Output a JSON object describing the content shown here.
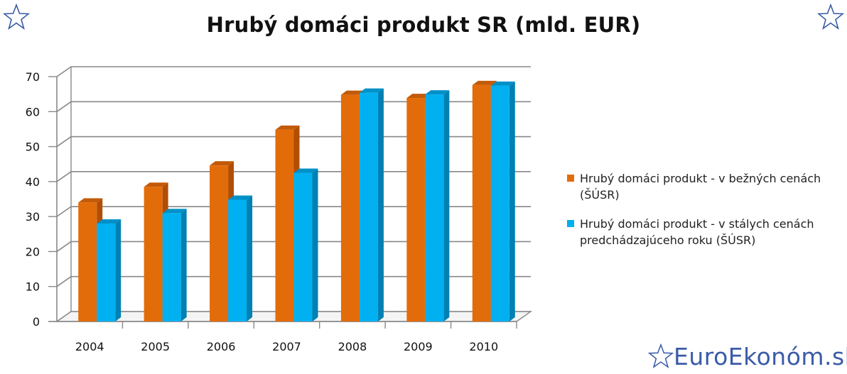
{
  "title": "Hrubý domáci produkt SR (mld. EUR)",
  "brand": "EuroEkonóm.sk",
  "colors": {
    "series1": "#e36c0a",
    "series1_side": "#b14e05",
    "series1_top": "#c35a07",
    "series2": "#00b0f0",
    "series2_side": "#0080b3",
    "series2_top": "#0090c8",
    "brand": "#3a5ba8",
    "grid": "#888888"
  },
  "chart_data": {
    "type": "bar",
    "title": "Hrubý domáci produkt SR (mld. EUR)",
    "categories": [
      "2004",
      "2005",
      "2006",
      "2007",
      "2008",
      "2009",
      "2010"
    ],
    "series": [
      {
        "name": "Hrubý domáci produkt - v bežných cenách (ŠÚSR)",
        "values": [
          34.0,
          38.5,
          44.6,
          54.8,
          64.8,
          63.9,
          67.6
        ]
      },
      {
        "name": "Hrubý domáci produkt - v stálych cenách predchádzajúceho roku (ŠÚSR)",
        "values": [
          28.0,
          31.0,
          34.8,
          42.5,
          65.4,
          64.9,
          67.4
        ]
      }
    ],
    "ylim": [
      0,
      70
    ],
    "yticks": [
      "0",
      "10",
      "20",
      "30",
      "40",
      "50",
      "60",
      "70"
    ],
    "grid": true,
    "legend_position": "right",
    "style": "3d-clustered"
  }
}
